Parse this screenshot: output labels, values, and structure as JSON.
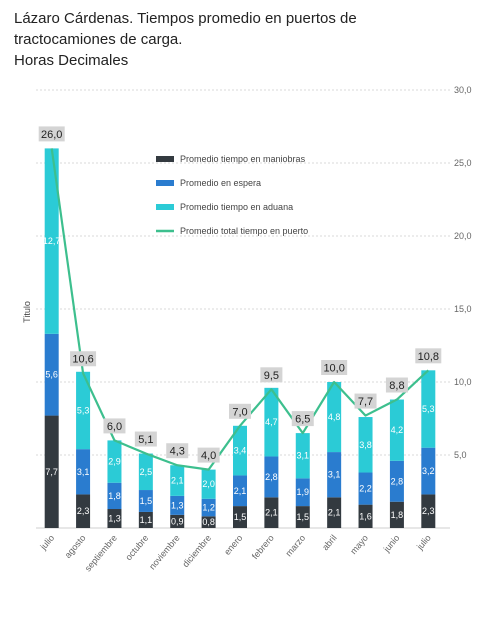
{
  "title": {
    "line1": "Lázaro Cárdenas. Tiempos promedio en puertos de",
    "line2": "tractocamiones de carga.",
    "subtitle": "Horas Decimales"
  },
  "chart_data": {
    "type": "bar",
    "stacked": true,
    "categories": [
      "julio",
      "agosto",
      "septiembre",
      "octubre",
      "noviembre",
      "diciembre",
      "enero",
      "febrero",
      "marzo",
      "abril",
      "mayo",
      "junio",
      "julio"
    ],
    "ylabel": "Titulo",
    "ylim": [
      0,
      30
    ],
    "yticks": [
      "30,0",
      "25,0",
      "20,0",
      "15,0",
      "10,0",
      "5,0"
    ],
    "grid": true,
    "legend_position": "top-center",
    "series": [
      {
        "name": "Promedio tiempo en maniobras",
        "color": "#333a40",
        "values": [
          7.7,
          2.3,
          1.3,
          1.1,
          0.9,
          0.8,
          1.5,
          2.1,
          1.5,
          2.1,
          1.6,
          1.8,
          2.3
        ],
        "labels": [
          "7,7",
          "2,3",
          "1,3",
          "1,1",
          "0,9",
          "0,8",
          "1,5",
          "2,1",
          "1,5",
          "2,1",
          "1,6",
          "1,8",
          "2,3"
        ]
      },
      {
        "name": "Promedio en espera",
        "color": "#2a7ccf",
        "values": [
          5.6,
          3.1,
          1.8,
          1.5,
          1.3,
          1.2,
          2.1,
          2.8,
          1.9,
          3.1,
          2.2,
          2.8,
          3.2
        ],
        "labels": [
          "5,6",
          "3,1",
          "1,8",
          "1,5",
          "1,3",
          "1,2",
          "2,1",
          "2,8",
          "1,9",
          "3,1",
          "2,2",
          "2,8",
          "3,2"
        ]
      },
      {
        "name": "Promedio tiempo en aduana",
        "color": "#2bcbd6",
        "values": [
          12.7,
          5.3,
          2.9,
          2.5,
          2.1,
          2.0,
          3.4,
          4.7,
          3.1,
          4.8,
          3.8,
          4.2,
          5.3
        ],
        "labels": [
          "12,7",
          "5,3",
          "2,9",
          "2,5",
          "2,1",
          "2,0",
          "3,4",
          "4,7",
          "3,1",
          "4,8",
          "3,8",
          "4,2",
          "5,3"
        ]
      }
    ],
    "line": {
      "name": "Promedio total tiempo en puerto",
      "color": "#3dbf8e",
      "values": [
        26.0,
        10.6,
        6.0,
        5.1,
        4.3,
        4.0,
        7.0,
        9.5,
        6.5,
        10.0,
        7.7,
        8.8,
        10.8
      ],
      "labels": [
        "26,0",
        "10,6",
        "6,0",
        "5,1",
        "4,3",
        "4,0",
        "7,0",
        "9,5",
        "6,5",
        "10,0",
        "7,7",
        "8,8",
        "10,8"
      ]
    }
  }
}
